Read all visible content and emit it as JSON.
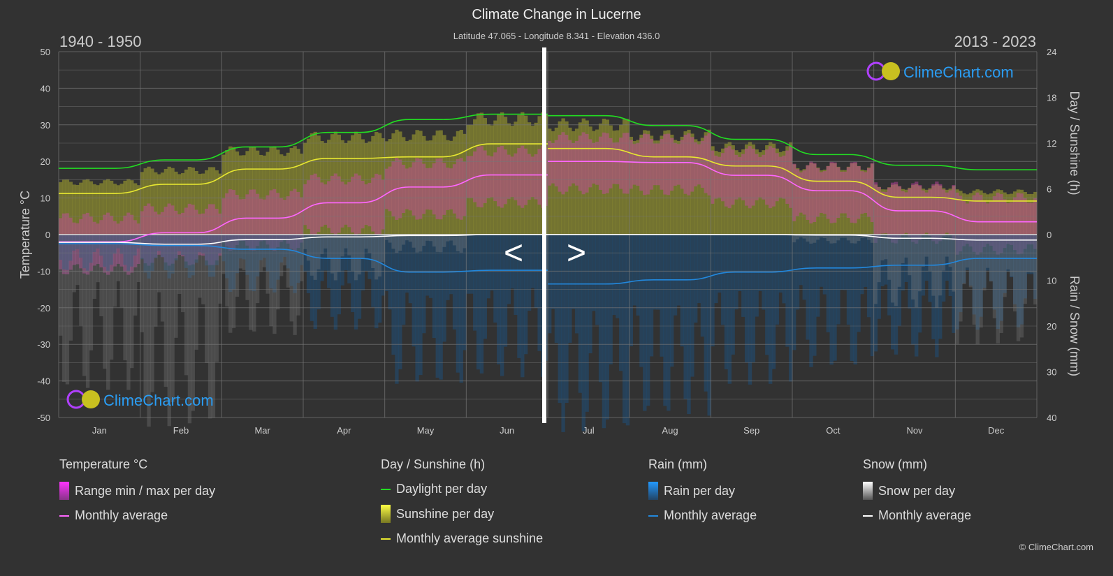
{
  "header": {
    "title": "Climate Change in Lucerne",
    "subtitle": "Latitude 47.065 - Longitude 8.341 - Elevation 436.0",
    "period_left": "1940 - 1950",
    "period_right": "2013 - 2023",
    "nav_prev": "<",
    "nav_next": ">"
  },
  "brand": {
    "logo_text": "ClimeChart.com",
    "copyright": "© ClimeChart.com"
  },
  "colors": {
    "daylight": "#22dd22",
    "sunshine": "#e8e830",
    "sunshine_area": "#8a8a30",
    "temp": "#ff66ff",
    "temp_range": "#cc44aa",
    "rain": "#2288dd",
    "snow": "#ffffff",
    "background": "#323232"
  },
  "chart_data": {
    "type": "line",
    "categories": [
      "Jan",
      "Feb",
      "Mar",
      "Apr",
      "May",
      "Jun",
      "Jul",
      "Aug",
      "Sep",
      "Oct",
      "Nov",
      "Dec"
    ],
    "left_axis": {
      "label": "Temperature °C",
      "range": [
        -50,
        50
      ],
      "ticks": [
        "50",
        "40",
        "30",
        "20",
        "10",
        "0",
        "-10",
        "-20",
        "-30",
        "-40",
        "-50"
      ]
    },
    "right_axis_top": {
      "label": "Day / Sunshine (h)",
      "range": [
        0,
        24
      ],
      "ticks": [
        "24",
        "18",
        "12",
        "6",
        "0"
      ]
    },
    "right_axis_bottom": {
      "label": "Rain / Snow (mm)",
      "range": [
        0,
        40
      ],
      "ticks": [
        "0",
        "10",
        "20",
        "30",
        "40"
      ]
    },
    "grid": true,
    "split_note": "Jan–Jun from 1940 - 1950, Jul–Dec from 2013 - 2023",
    "series": {
      "temp_monthly_avg": [
        -2.0,
        0.5,
        4.5,
        8.7,
        13.0,
        16.3,
        20.0,
        19.7,
        16.2,
        12.0,
        6.5,
        3.5
      ],
      "daylight_hours": [
        8.7,
        9.8,
        11.5,
        13.4,
        15.1,
        15.8,
        15.6,
        14.3,
        12.5,
        10.5,
        9.1,
        8.5
      ],
      "sunshine_monthly_avg_hours": [
        5.4,
        6.6,
        8.6,
        10.0,
        10.2,
        11.9,
        11.3,
        10.2,
        9.0,
        7.0,
        4.9,
        4.4
      ],
      "rain_monthly_avg_mm": [
        2.0,
        2.4,
        3.2,
        5.2,
        8.2,
        7.8,
        10.8,
        9.9,
        8.2,
        7.3,
        6.7,
        5.2
      ],
      "snow_monthly_avg_mm": [
        1.7,
        2.1,
        1.1,
        0.5,
        0.2,
        0.0,
        0.0,
        0.0,
        0.0,
        0.1,
        0.8,
        1.2
      ]
    }
  },
  "legend": {
    "groups": [
      {
        "title": "Temperature °C",
        "items": [
          "Range min / max per day",
          "Monthly average"
        ]
      },
      {
        "title": "Day / Sunshine (h)",
        "items": [
          "Daylight per day",
          "Sunshine per day",
          "Monthly average sunshine"
        ]
      },
      {
        "title": "Rain (mm)",
        "items": [
          "Rain per day",
          "Monthly average"
        ]
      },
      {
        "title": "Snow (mm)",
        "items": [
          "Snow per day",
          "Monthly average"
        ]
      }
    ]
  }
}
